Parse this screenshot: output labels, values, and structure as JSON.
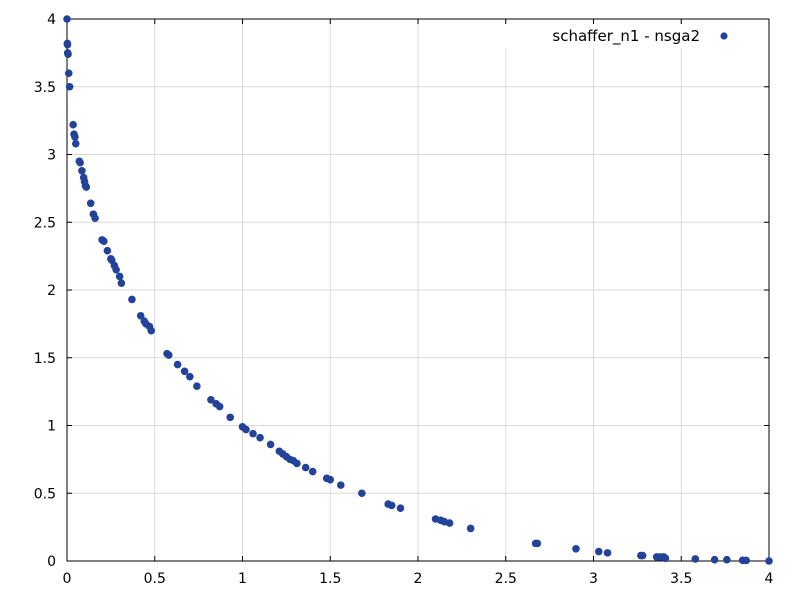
{
  "chart_data": {
    "type": "scatter",
    "title": "",
    "xlabel": "",
    "ylabel": "",
    "xlim": [
      0,
      4
    ],
    "ylim": [
      0,
      4
    ],
    "x_ticks": [
      "0",
      "0.5",
      "1",
      "1.5",
      "2",
      "2.5",
      "3",
      "3.5",
      "4"
    ],
    "y_ticks": [
      "0",
      "0.5",
      "1",
      "1.5",
      "2",
      "2.5",
      "3",
      "3.5",
      "4"
    ],
    "grid": true,
    "legend_position": "top-right",
    "series": [
      {
        "name": "schaffer_n1 - nsga2",
        "color": "#23439b",
        "points": [
          [
            0.0,
            4.0
          ],
          [
            0.002,
            3.82
          ],
          [
            0.003,
            3.81
          ],
          [
            0.004,
            3.75
          ],
          [
            0.006,
            3.74
          ],
          [
            0.01,
            3.6
          ],
          [
            0.015,
            3.5
          ],
          [
            0.035,
            3.22
          ],
          [
            0.04,
            3.15
          ],
          [
            0.045,
            3.13
          ],
          [
            0.05,
            3.08
          ],
          [
            0.07,
            2.95
          ],
          [
            0.075,
            2.94
          ],
          [
            0.085,
            2.88
          ],
          [
            0.095,
            2.83
          ],
          [
            0.1,
            2.8
          ],
          [
            0.105,
            2.77
          ],
          [
            0.11,
            2.76
          ],
          [
            0.135,
            2.64
          ],
          [
            0.15,
            2.56
          ],
          [
            0.16,
            2.53
          ],
          [
            0.2,
            2.37
          ],
          [
            0.21,
            2.36
          ],
          [
            0.23,
            2.29
          ],
          [
            0.25,
            2.23
          ],
          [
            0.255,
            2.22
          ],
          [
            0.27,
            2.18
          ],
          [
            0.28,
            2.15
          ],
          [
            0.3,
            2.1
          ],
          [
            0.31,
            2.05
          ],
          [
            0.37,
            1.93
          ],
          [
            0.42,
            1.81
          ],
          [
            0.44,
            1.77
          ],
          [
            0.45,
            1.75
          ],
          [
            0.47,
            1.73
          ],
          [
            0.48,
            1.7
          ],
          [
            0.57,
            1.53
          ],
          [
            0.58,
            1.52
          ],
          [
            0.63,
            1.45
          ],
          [
            0.67,
            1.4
          ],
          [
            0.7,
            1.36
          ],
          [
            0.74,
            1.29
          ],
          [
            0.82,
            1.19
          ],
          [
            0.85,
            1.16
          ],
          [
            0.87,
            1.14
          ],
          [
            0.93,
            1.06
          ],
          [
            1.0,
            0.99
          ],
          [
            1.02,
            0.97
          ],
          [
            1.06,
            0.94
          ],
          [
            1.1,
            0.91
          ],
          [
            1.16,
            0.86
          ],
          [
            1.21,
            0.81
          ],
          [
            1.23,
            0.79
          ],
          [
            1.25,
            0.77
          ],
          [
            1.27,
            0.75
          ],
          [
            1.29,
            0.74
          ],
          [
            1.31,
            0.72
          ],
          [
            1.36,
            0.69
          ],
          [
            1.4,
            0.66
          ],
          [
            1.48,
            0.61
          ],
          [
            1.5,
            0.6
          ],
          [
            1.56,
            0.56
          ],
          [
            1.68,
            0.5
          ],
          [
            1.83,
            0.42
          ],
          [
            1.85,
            0.41
          ],
          [
            1.9,
            0.39
          ],
          [
            2.1,
            0.31
          ],
          [
            2.13,
            0.3
          ],
          [
            2.15,
            0.29
          ],
          [
            2.18,
            0.28
          ],
          [
            2.3,
            0.24
          ],
          [
            2.67,
            0.13
          ],
          [
            2.68,
            0.13
          ],
          [
            2.9,
            0.09
          ],
          [
            3.03,
            0.07
          ],
          [
            3.08,
            0.06
          ],
          [
            3.27,
            0.04
          ],
          [
            3.28,
            0.04
          ],
          [
            3.36,
            0.03
          ],
          [
            3.38,
            0.03
          ],
          [
            3.4,
            0.03
          ],
          [
            3.41,
            0.02
          ],
          [
            3.58,
            0.015
          ],
          [
            3.69,
            0.01
          ],
          [
            3.76,
            0.01
          ],
          [
            3.85,
            0.005
          ],
          [
            3.87,
            0.004
          ],
          [
            4.0,
            0.0
          ]
        ]
      }
    ]
  }
}
